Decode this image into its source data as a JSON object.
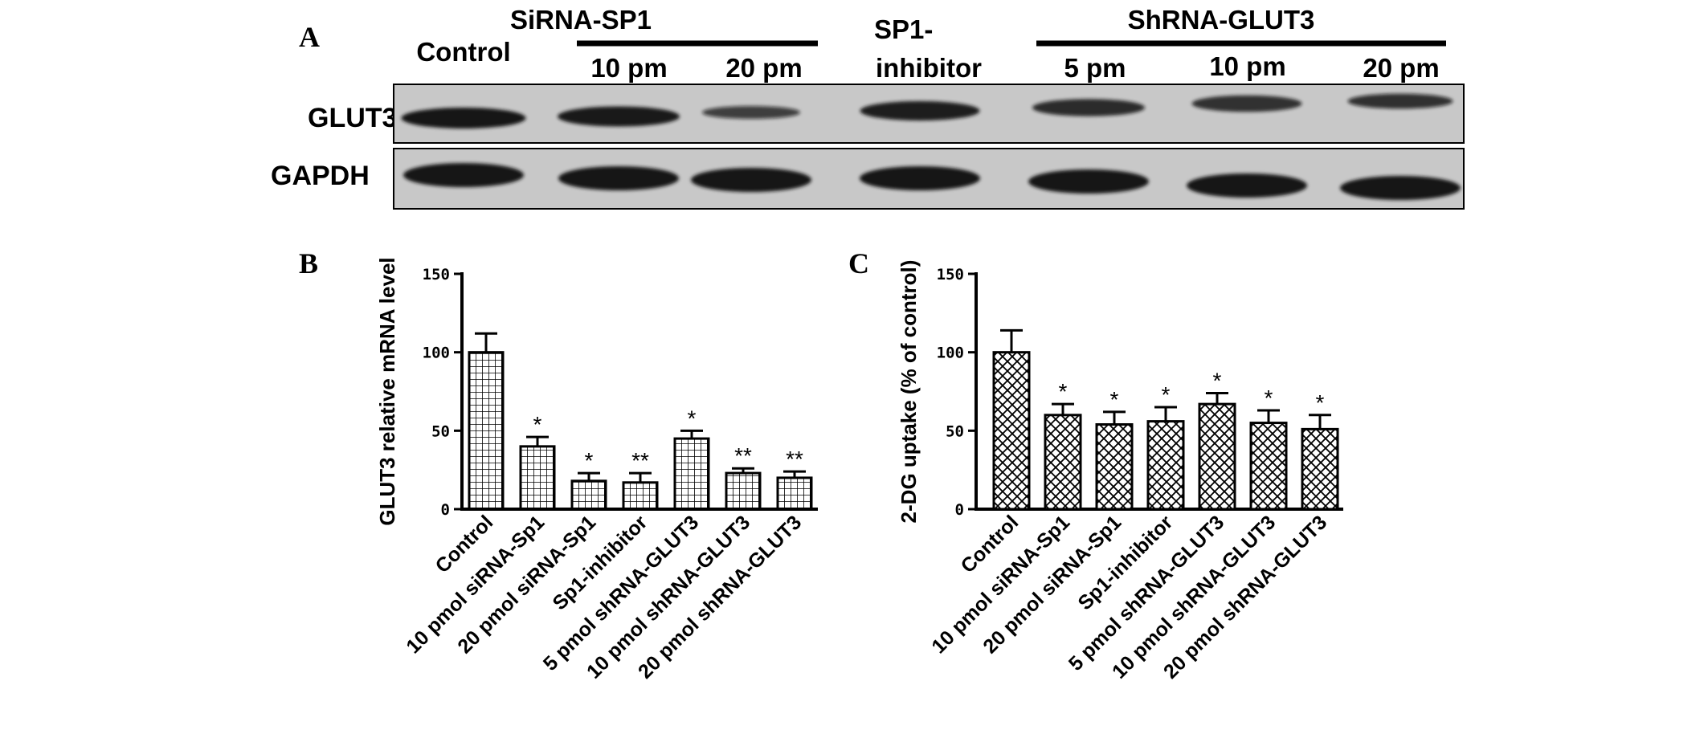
{
  "colors": {
    "ink": "#000000",
    "blot_bg": "#c8c8c8",
    "band": "#141414",
    "background": "#ffffff"
  },
  "panel_A": {
    "letter": "A",
    "group_siRNA": "SiRNA-SP1",
    "group_shRNA": "ShRNA-GLUT3",
    "lanes": [
      "Control",
      "10 pm",
      "20 pm",
      "SP1-",
      "inhibitor",
      "5 pm",
      "10 pm",
      "20 pm"
    ],
    "rows": [
      "GLUT3",
      "GAPDH"
    ],
    "band_intensity": {
      "GLUT3": [
        1.0,
        0.95,
        0.45,
        0.9,
        0.75,
        0.7,
        0.6
      ],
      "GAPDH": [
        1.0,
        1.0,
        1.0,
        1.0,
        1.0,
        1.0,
        1.0
      ]
    }
  },
  "chart_data": [
    {
      "type": "bar",
      "panel_letter": "B",
      "ylabel": "GLUT3 relative mRNA level",
      "xlabel": "",
      "ylim": [
        0,
        150
      ],
      "yticks": [
        "0",
        "50",
        "100",
        "150"
      ],
      "categories": [
        "Control",
        "10 pmol siRNA-Sp1",
        "20 pmol siRNA-Sp1",
        "Sp1-inhibitor",
        "5 pmol shRNA-GLUT3",
        "10 pmol shRNA-GLUT3",
        "20 pmol shRNA-GLUT3"
      ],
      "values": [
        100,
        40,
        18,
        17,
        45,
        23,
        20
      ],
      "errors": [
        12,
        6,
        5,
        6,
        5,
        3,
        4
      ],
      "significance": [
        "",
        "*",
        "*",
        "**",
        "*",
        "**",
        "**"
      ],
      "pattern": "grid"
    },
    {
      "type": "bar",
      "panel_letter": "C",
      "ylabel": "2-DG uptake (% of control)",
      "xlabel": "",
      "ylim": [
        0,
        150
      ],
      "yticks": [
        "0",
        "50",
        "100",
        "150"
      ],
      "categories": [
        "Control",
        "10 pmol siRNA-Sp1",
        "20 pmol siRNA-Sp1",
        "Sp1-inhibitor",
        "5 pmol shRNA-GLUT3",
        "10 pmol shRNA-GLUT3",
        "20 pmol shRNA-GLUT3"
      ],
      "values": [
        100,
        60,
        54,
        56,
        67,
        55,
        51
      ],
      "errors": [
        14,
        7,
        8,
        9,
        7,
        8,
        9
      ],
      "significance": [
        "",
        "*",
        "*",
        "*",
        "*",
        "*",
        "*"
      ],
      "pattern": "crosshatch"
    }
  ]
}
